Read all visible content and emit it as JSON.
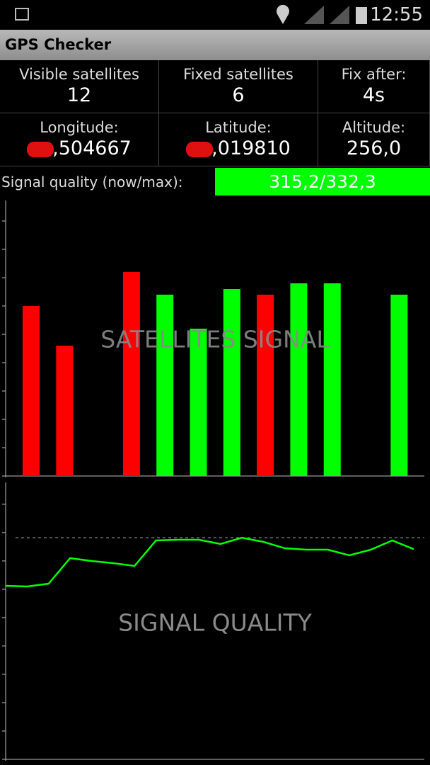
{
  "status_bar": {
    "time": "12:55"
  },
  "app_bar": {
    "title": "GPS Checker"
  },
  "info": {
    "cells": [
      {
        "label": "Visible satellites",
        "value": "12"
      },
      {
        "label": "Fixed satellites",
        "value": "6"
      },
      {
        "label": "Fix after:",
        "value": "4s"
      },
      {
        "label": "Longitude:",
        "value": ",504667"
      },
      {
        "label": "Latitude:",
        "value": ",019810"
      },
      {
        "label": "Altitude:",
        "value": "256,0"
      }
    ]
  },
  "signal_quality": {
    "label": "Signal quality (now/max):",
    "value": "315,2/332,3"
  },
  "chart_data": [
    {
      "type": "bar",
      "title": "SATELLITES SIGNAL",
      "values": [
        30,
        23,
        0,
        36,
        32,
        26,
        33,
        32,
        34,
        34,
        0,
        32
      ],
      "colors": [
        "#ff0000",
        "#ff0000",
        "#ff0000",
        "#ff0000",
        "#00ff00",
        "#00ff00",
        "#00ff00",
        "#ff0000",
        "#00ff00",
        "#00ff00",
        "#00ff00",
        "#00ff00"
      ],
      "ylim": [
        0,
        48
      ],
      "yticks": [
        0,
        5,
        10,
        15,
        20,
        25,
        30,
        35,
        40,
        45
      ]
    },
    {
      "type": "line",
      "title": "SIGNAL QUALITY",
      "x": [
        1,
        2,
        3,
        4,
        5,
        6,
        7,
        8,
        9,
        10,
        11,
        12,
        13,
        14,
        15,
        16,
        17,
        18,
        19,
        20
      ],
      "series": [
        {
          "color": "#00ff00",
          "values": [
            260.2,
            259.2,
            263.4,
            301.7,
            297.4,
            294.2,
            290.0,
            328.2,
            329.3,
            329.3,
            322.9,
            332.3,
            326.1,
            316.5,
            314.4,
            314.4,
            305.9,
            314.4,
            328.2,
            315.2
          ]
        }
      ],
      "max_line": 332.3,
      "xlim": [
        1,
        20
      ],
      "ylim": [
        0,
        410
      ],
      "yticks": [
        0,
        42.5,
        85,
        127.5,
        170,
        212.5,
        255,
        297.5,
        340,
        382.5
      ]
    }
  ]
}
